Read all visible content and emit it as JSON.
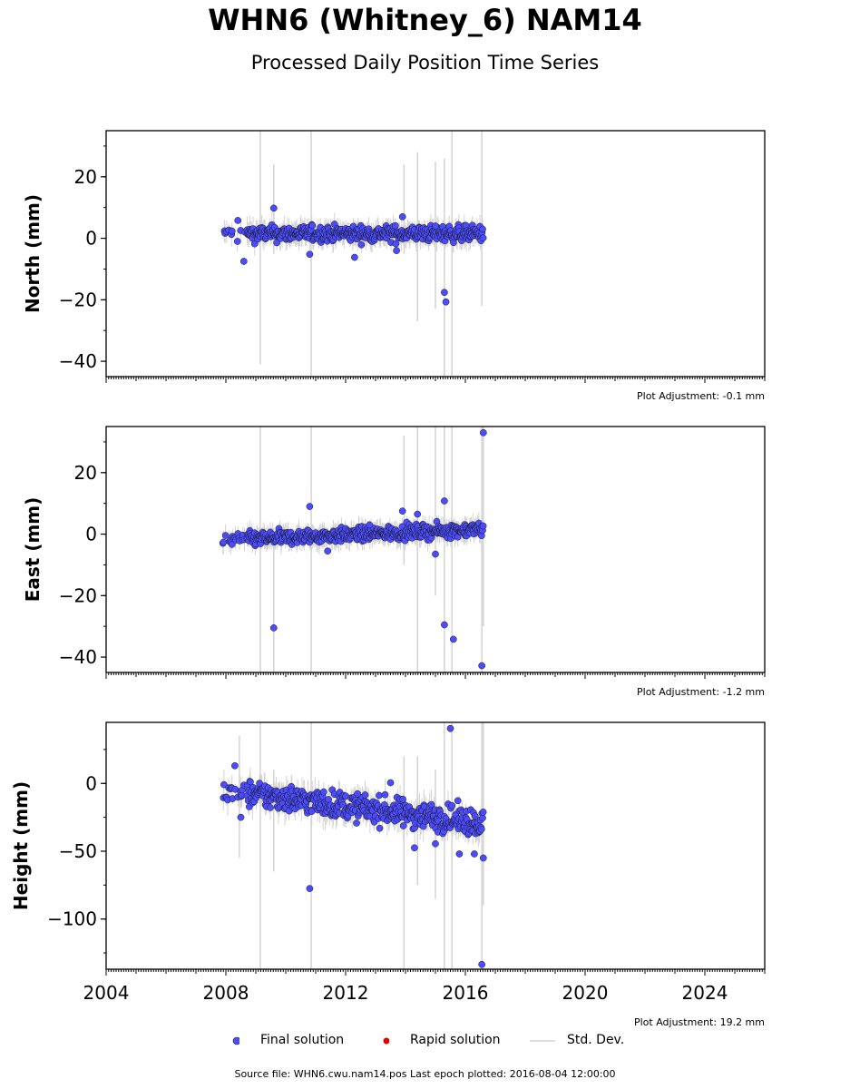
{
  "header": {
    "title": "WHN6 (Whitney_6) NAM14",
    "subtitle": "Processed Daily Position Time Series"
  },
  "legend": {
    "items": [
      {
        "label": "Final solution",
        "color": "#4b4bff",
        "symbol": "dot-outlined"
      },
      {
        "label": "Rapid solution",
        "color": "#e00000",
        "symbol": "dot"
      },
      {
        "label": "Std. Dev.",
        "color": "#d3d3d3",
        "symbol": "line"
      }
    ]
  },
  "footer": {
    "text": "Source file: WHN6.cwu.nam14.pos  Last epoch plotted: 2016-08-04 12:00:00"
  },
  "colors": {
    "final_fill": "#4b4bff",
    "final_edge": "#1a1a1a",
    "errorbar": "#d3d3d3",
    "axes": "#000000"
  },
  "chart_data": [
    {
      "type": "scatter",
      "ylabel": "North (mm)",
      "xlabel": "",
      "xlim": [
        2004,
        2026
      ],
      "ylim": [
        -45,
        35
      ],
      "yticks": [
        -40,
        -20,
        0,
        20
      ],
      "xticks": [],
      "adjustment": "Plot Adjustment: -0.1 mm",
      "trend": {
        "start": 1.5,
        "slope": 0,
        "noise": 1.8
      },
      "span": [
        2007.9,
        2016.6
      ],
      "outliers": [
        [
          2008.6,
          -7.5
        ],
        [
          2009.6,
          9.8
        ],
        [
          2010.8,
          -5.2
        ],
        [
          2012.3,
          -6.2
        ],
        [
          2013.9,
          7.0
        ],
        [
          2013.7,
          -4.0
        ],
        [
          2015.3,
          -17.6
        ],
        [
          2015.35,
          -20.7
        ],
        [
          2015.0,
          4.0
        ],
        [
          2008.4,
          5.8
        ]
      ],
      "spikes": [
        [
          2009.15,
          -41,
          35
        ],
        [
          2009.6,
          -5,
          24
        ],
        [
          2010.85,
          -45,
          35
        ],
        [
          2013.95,
          -5,
          24
        ],
        [
          2014.4,
          -27,
          28
        ],
        [
          2015.0,
          -23,
          25
        ],
        [
          2015.3,
          -45,
          26
        ],
        [
          2015.55,
          -45,
          35
        ],
        [
          2016.55,
          -22,
          35
        ]
      ]
    },
    {
      "type": "scatter",
      "ylabel": "East (mm)",
      "xlabel": "",
      "xlim": [
        2004,
        2026
      ],
      "ylim": [
        -45,
        35
      ],
      "yticks": [
        -40,
        -20,
        0,
        20
      ],
      "xticks": [],
      "adjustment": "Plot Adjustment: -1.2 mm",
      "trend": {
        "start": -2.0,
        "slope": 0.42,
        "noise": 1.6
      },
      "span": [
        2007.9,
        2016.6
      ],
      "outliers": [
        [
          2009.6,
          -30.5
        ],
        [
          2010.8,
          9.0
        ],
        [
          2011.4,
          -5.5
        ],
        [
          2013.9,
          7.5
        ],
        [
          2014.4,
          6.5
        ],
        [
          2015.0,
          -6.5
        ],
        [
          2015.3,
          10.8
        ],
        [
          2015.3,
          -29.5
        ],
        [
          2015.6,
          -34.2
        ],
        [
          2016.55,
          -42.8
        ],
        [
          2016.6,
          33.0
        ],
        [
          2012.8,
          3.0
        ]
      ],
      "spikes": [
        [
          2009.15,
          -45,
          35
        ],
        [
          2009.6,
          -45,
          2
        ],
        [
          2010.85,
          -45,
          35
        ],
        [
          2013.95,
          -10,
          32
        ],
        [
          2014.4,
          -45,
          35
        ],
        [
          2015.0,
          -20,
          35
        ],
        [
          2015.3,
          -45,
          35
        ],
        [
          2015.55,
          -45,
          35
        ],
        [
          2016.55,
          -45,
          35
        ],
        [
          2016.6,
          -30,
          35
        ]
      ]
    },
    {
      "type": "scatter",
      "ylabel": "Height (mm)",
      "xlabel": "",
      "xlim": [
        2004,
        2026
      ],
      "ylim": [
        -137,
        45
      ],
      "yticks": [
        -100,
        -50,
        0
      ],
      "xticks": [
        2004,
        2008,
        2012,
        2016,
        2020,
        2024
      ],
      "adjustment": "Plot Adjustment: 19.2 mm",
      "trend": {
        "start": -5,
        "slope": -2.8,
        "noise": 7
      },
      "span": [
        2007.9,
        2016.6
      ],
      "outliers": [
        [
          2010.8,
          -77.5
        ],
        [
          2008.3,
          13.0
        ],
        [
          2008.5,
          -25.0
        ],
        [
          2014.3,
          -47.5
        ],
        [
          2015.0,
          -44.5
        ],
        [
          2015.5,
          40.5
        ],
        [
          2015.8,
          -52.0
        ],
        [
          2016.3,
          -52.0
        ],
        [
          2016.6,
          -55.0
        ],
        [
          2016.55,
          -133.5
        ],
        [
          2013.5,
          0.5
        ]
      ],
      "spikes": [
        [
          2008.45,
          -55,
          35
        ],
        [
          2009.15,
          -137,
          45
        ],
        [
          2009.6,
          -65,
          10
        ],
        [
          2010.85,
          -137,
          45
        ],
        [
          2013.95,
          -137,
          20
        ],
        [
          2014.4,
          -75,
          20
        ],
        [
          2015.0,
          -85,
          10
        ],
        [
          2015.3,
          -137,
          45
        ],
        [
          2015.55,
          -137,
          45
        ],
        [
          2016.55,
          -137,
          45
        ],
        [
          2016.6,
          -90,
          45
        ]
      ]
    }
  ]
}
